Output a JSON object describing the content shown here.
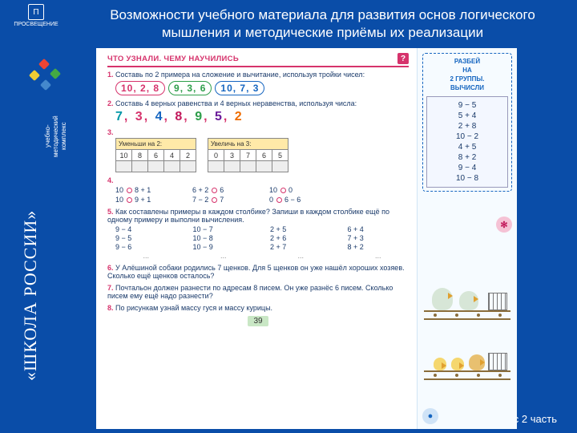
{
  "brand": {
    "name": "ПРОСВЕЩЕНИЕ",
    "sub": "издательство"
  },
  "sidebar": {
    "series": "«ШКОЛА РОССИИ»",
    "umk_lines": [
      "учебно-",
      "методический",
      "комплекс"
    ]
  },
  "title": "Возможности учебного материала для развития основ логического мышления и методические приёмы их реализации",
  "class_label": "1 класс 2 часть",
  "page": {
    "header": "ЧТО УЗНАЛИ. ЧЕМУ НАУЧИЛИСЬ",
    "header_badge": "?",
    "page_number": "39",
    "colors": {
      "accent": "#d6336c",
      "bubble_red": "#d6336c",
      "bubble_green": "#2e9e4a",
      "bubble_blue": "#1565c0",
      "page_bg": "#ffffff",
      "side_bg": "#f6fbff"
    },
    "tasks": {
      "t1": {
        "num": "1.",
        "text": "Составь по 2 примера на сложение и вычитание, используя тройки чисел:",
        "bubbles": [
          "10, 2, 8",
          "9, 3, 6",
          "10, 7, 3"
        ]
      },
      "t2": {
        "num": "2.",
        "text": "Составь 4 верных равенства и 4 верных неравенства, используя числа:",
        "digits": [
          {
            "v": "7",
            "c": "c-teal"
          },
          {
            "v": "3",
            "c": "c-red"
          },
          {
            "v": "4",
            "c": "c-blue"
          },
          {
            "v": "8",
            "c": "c-mag"
          },
          {
            "v": "9",
            "c": "c-grn"
          },
          {
            "v": "5",
            "c": "c-pur"
          },
          {
            "v": "2",
            "c": "c-or"
          }
        ]
      },
      "t3": {
        "num": "3.",
        "left": {
          "label": "Уменьши на 2:",
          "top": [
            "10",
            "8",
            "6",
            "4",
            "2"
          ],
          "bot": [
            "",
            "",
            "",
            "",
            ""
          ]
        },
        "right": {
          "label": "Увеличь на 3:",
          "top": [
            "0",
            "3",
            "7",
            "6",
            "5"
          ],
          "bot": [
            "",
            "",
            "",
            "",
            ""
          ]
        }
      },
      "t4": {
        "num": "4.",
        "cells": [
          "10 ◯ 8 + 1",
          "6 + 2 ◯ 6",
          "10 ◯ 0",
          "",
          "10 ◯ 9 + 1",
          "7 − 2 ◯ 7",
          "0 ◯ 6 − 6",
          ""
        ]
      },
      "t5": {
        "num": "5.",
        "text": "Как составлены примеры в каждом столбике? Запиши в каждом столбике ещё по одному примеру и выполни вычисления.",
        "cols": [
          "9 − 4",
          "10 − 7",
          "2 + 5",
          "6 + 4",
          "9 − 5",
          "10 − 8",
          "2 + 6",
          "7 + 3",
          "9 − 6",
          "10 − 9",
          "2 + 7",
          "8 + 2",
          "...",
          "...",
          "...",
          "..."
        ]
      },
      "t6": {
        "num": "6.",
        "text": "У Алёшиной собаки родились 7 щенков. Для 5 щенков он уже нашёл хороших хозяев. Сколько ещё щенков осталось?"
      },
      "t7": {
        "num": "7.",
        "text": "Почтальон должен разнести по адресам 8 писем. Он уже разнёс 6 писем. Сколько писем ему ещё надо разнести?"
      },
      "t8": {
        "num": "8.",
        "text": "По рисункам узнай массу гуся и массу курицы."
      }
    }
  },
  "side": {
    "card_lines": [
      "РАЗБЕЙ",
      "НА",
      "2 ГРУППЫ.",
      "ВЫЧИСЛИ"
    ],
    "exprs": [
      "9 − 5",
      "5 + 4",
      "2 + 8",
      "10 − 2",
      "4 + 5",
      "8 + 2",
      "9 − 4",
      "10 − 8"
    ],
    "pink_btn": "✻",
    "blue_btn": "●"
  }
}
